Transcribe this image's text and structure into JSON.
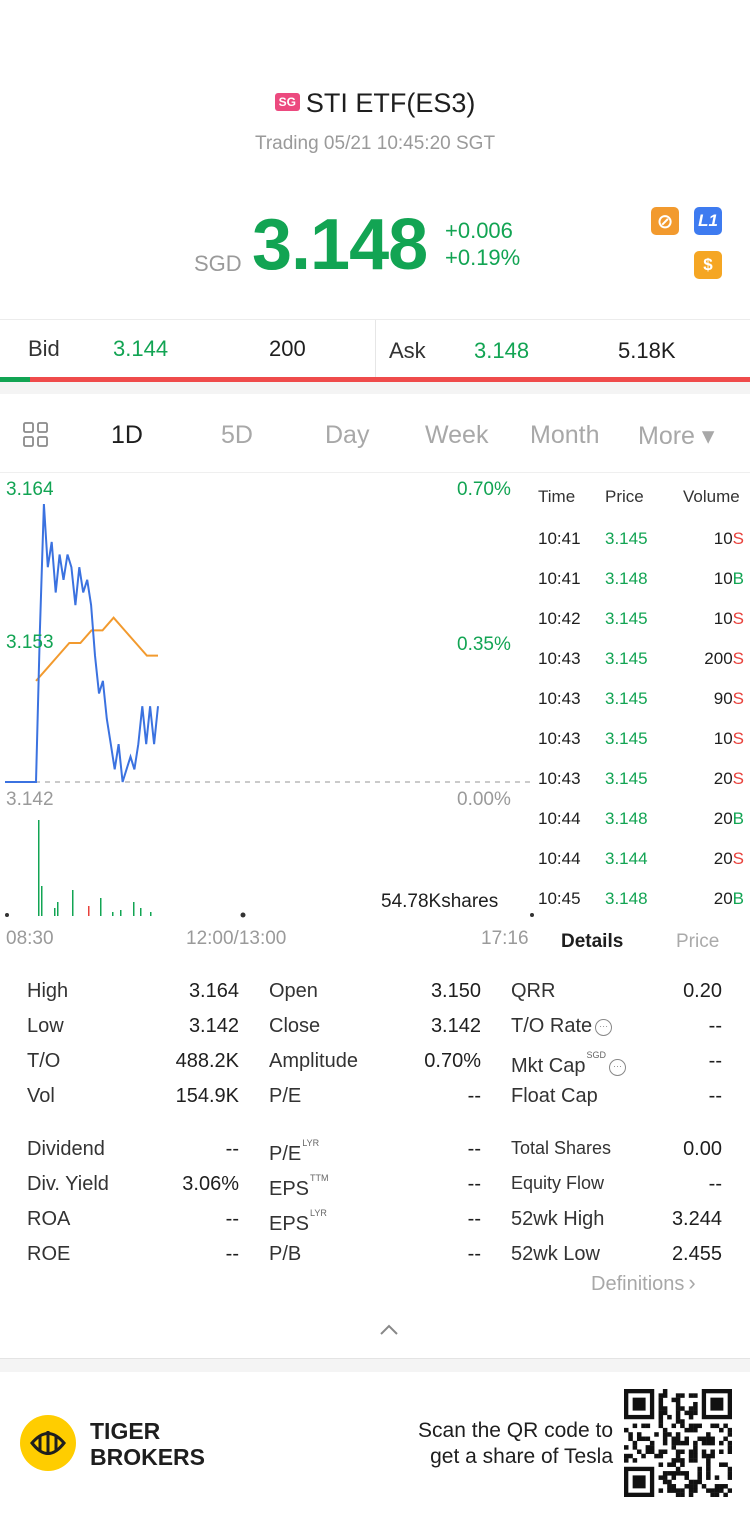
{
  "header": {
    "market_badge": "SG",
    "title": "STI ETF(ES3)",
    "status": "Trading 05/21 10:45:20 SGT"
  },
  "quote": {
    "currency": "SGD",
    "price": "3.148",
    "change": "+0.006",
    "change_pct": "+0.19%",
    "badges": [
      {
        "icon": "no-short-icon",
        "text": "⊘",
        "color": "#f29a2e"
      },
      {
        "icon": "level1-icon",
        "text": "L1",
        "color": "#3e7bf0"
      },
      {
        "icon": "dollar-icon",
        "text": "$",
        "color": "#f5a623"
      }
    ]
  },
  "bidask": {
    "bid_label": "Bid",
    "bid_price": "3.144",
    "bid_size": "200",
    "ask_label": "Ask",
    "ask_price": "3.148",
    "ask_size": "5.18K",
    "bid_ratio": 0.04
  },
  "tabs": [
    "1D",
    "5D",
    "Day",
    "Week",
    "Month",
    "More ▾"
  ],
  "chart": {
    "left_labels": {
      "high": "3.164",
      "mid": "3.153",
      "low": "3.142"
    },
    "right_labels": {
      "high": "0.70%",
      "mid": "0.35%",
      "low": "0.00%"
    },
    "volume_label": "54.78Kshares",
    "time_labels": [
      "08:30",
      "12:00/13:00",
      "17:16"
    ]
  },
  "chart_data": {
    "type": "line",
    "x_range": [
      "08:30",
      "17:16"
    ],
    "ylim": [
      3.142,
      3.164
    ],
    "y_pct_range": [
      "0.00%",
      "0.70%"
    ],
    "series": [
      {
        "role": "price",
        "color": "#3b72e0",
        "values": [
          3.142,
          3.142,
          3.142,
          3.154,
          3.164,
          3.159,
          3.161,
          3.157,
          3.16,
          3.158,
          3.16,
          3.159,
          3.156,
          3.159,
          3.157,
          3.158,
          3.156,
          3.152,
          3.149,
          3.15,
          3.147,
          3.145,
          3.143,
          3.145,
          3.142,
          3.143,
          3.144,
          3.143,
          3.145,
          3.148,
          3.145,
          3.148,
          3.145,
          3.148
        ]
      },
      {
        "role": "average",
        "color": "#f29a2e",
        "values": [
          3.15,
          3.151,
          3.152,
          3.153,
          3.153,
          3.154,
          3.154,
          3.155,
          3.154,
          3.153,
          3.152,
          3.152
        ]
      }
    ],
    "volume": {
      "total": "54.78Kshares"
    }
  },
  "ticks": {
    "headers": [
      "Time",
      "Price",
      "Volume"
    ],
    "rows": [
      {
        "time": "10:41",
        "price": "3.145",
        "vol": "10",
        "side": "S"
      },
      {
        "time": "10:41",
        "price": "3.148",
        "vol": "10",
        "side": "B"
      },
      {
        "time": "10:42",
        "price": "3.145",
        "vol": "10",
        "side": "S"
      },
      {
        "time": "10:43",
        "price": "3.145",
        "vol": "200",
        "side": "S"
      },
      {
        "time": "10:43",
        "price": "3.145",
        "vol": "90",
        "side": "S"
      },
      {
        "time": "10:43",
        "price": "3.145",
        "vol": "10",
        "side": "S"
      },
      {
        "time": "10:43",
        "price": "3.145",
        "vol": "20",
        "side": "S"
      },
      {
        "time": "10:44",
        "price": "3.148",
        "vol": "20",
        "side": "B"
      },
      {
        "time": "10:44",
        "price": "3.144",
        "vol": "20",
        "side": "S"
      },
      {
        "time": "10:45",
        "price": "3.148",
        "vol": "20",
        "side": "B"
      }
    ],
    "tab_details": "Details",
    "tab_price": "Price"
  },
  "stats": {
    "col1": [
      {
        "label": "High",
        "value": "3.164"
      },
      {
        "label": "Low",
        "value": "3.142"
      },
      {
        "label": "T/O",
        "value": "488.2K"
      },
      {
        "label": "Vol",
        "value": "154.9K"
      },
      {
        "label": "Dividend",
        "value": "--"
      },
      {
        "label": "Div. Yield",
        "value": "3.06%"
      },
      {
        "label": "ROA",
        "value": "--"
      },
      {
        "label": "ROE",
        "value": "--"
      }
    ],
    "col2": [
      {
        "label": "Open",
        "value": "3.150"
      },
      {
        "label": "Close",
        "value": "3.142"
      },
      {
        "label": "Amplitude",
        "value": "0.70%"
      },
      {
        "label": "P/E",
        "value": "--"
      },
      {
        "label": "P/E",
        "sup": "LYR",
        "value": "--"
      },
      {
        "label": "EPS",
        "sup": "TTM",
        "value": "--"
      },
      {
        "label": "EPS",
        "sup": "LYR",
        "value": "--"
      },
      {
        "label": "P/B",
        "value": "--"
      }
    ],
    "col3": [
      {
        "label": "QRR",
        "value": "0.20"
      },
      {
        "label": "T/O Rate",
        "value": "--"
      },
      {
        "label": "Mkt Cap",
        "sup": "SGD",
        "value": "--"
      },
      {
        "label": "Float Cap",
        "value": "--"
      },
      {
        "label": "Total Shares",
        "value": "0.00"
      },
      {
        "label": "Equity Flow",
        "value": "--"
      },
      {
        "label": "52wk High",
        "value": "3.244"
      },
      {
        "label": "52wk Low",
        "value": "2.455"
      }
    ],
    "definitions": "Definitions"
  },
  "footer": {
    "brand_line1": "TIGER",
    "brand_line2": "BROKERS",
    "promo_line1": "Scan the QR code to",
    "promo_line2": "get a share of Tesla"
  }
}
